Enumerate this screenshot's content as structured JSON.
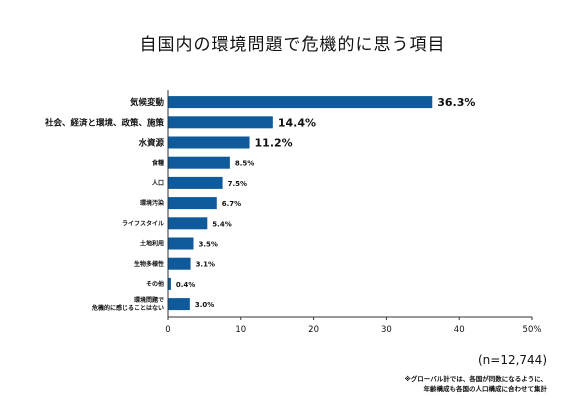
{
  "title": "自国内の環境問題で危機的に思う項目",
  "sample_size": "(n=12,744)",
  "footnote_line1": "※グローバル計では、各国が同数になるように、",
  "footnote_line2": "年齢構成も各国の人口構成に合わせて集計",
  "colors": {
    "bar": "#0e5a9b",
    "axis": "#333333"
  },
  "chart_data": {
    "type": "bar",
    "orientation": "horizontal",
    "title": "自国内の環境問題で危機的に思う項目",
    "xlabel": "",
    "ylabel": "",
    "xlim": [
      0,
      50
    ],
    "x_ticks": [
      "0",
      "10",
      "20",
      "30",
      "40",
      "50%"
    ],
    "grid": false,
    "categories": [
      "気候変動",
      "社会、経済と環境、政策、施策",
      "水資源",
      "食糧",
      "人口",
      "環境汚染",
      "ライフスタイル",
      "土地利用",
      "生物多様性",
      "その他",
      [
        "環境問題で",
        "危機的に感じることはない"
      ]
    ],
    "values": [
      36.3,
      14.4,
      11.2,
      8.5,
      7.5,
      6.7,
      5.4,
      3.5,
      3.1,
      0.4,
      3.0
    ],
    "value_labels": [
      "36.3%",
      "14.4%",
      "11.2%",
      "8.5%",
      "7.5%",
      "6.7%",
      "5.4%",
      "3.5%",
      "3.1%",
      "0.4%",
      "3.0%"
    ],
    "emphasized": [
      true,
      true,
      true,
      false,
      false,
      false,
      false,
      false,
      false,
      false,
      false
    ]
  }
}
